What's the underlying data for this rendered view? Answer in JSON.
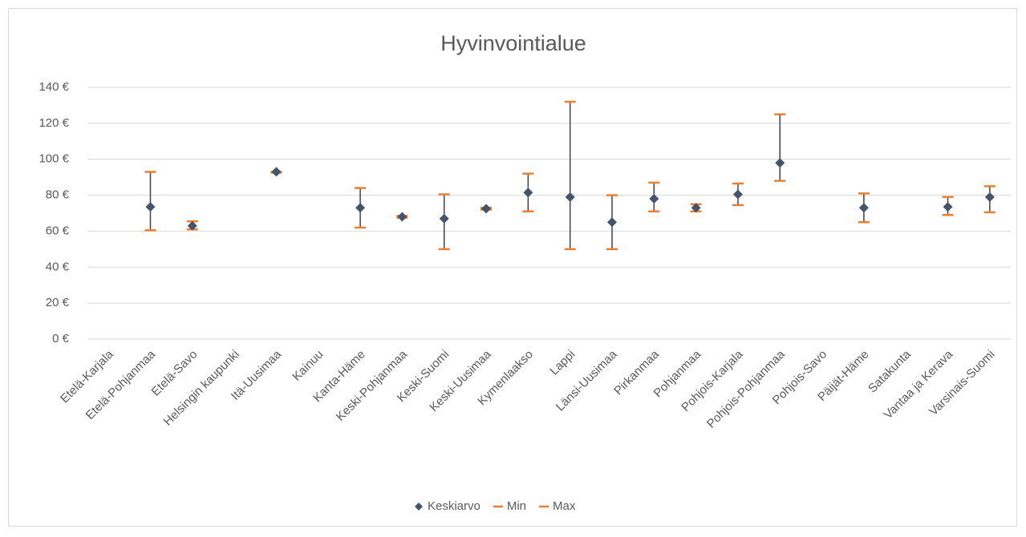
{
  "chart_data": {
    "type": "hilo",
    "title": "Hyvinvointialue",
    "categories": [
      "Etelä-Karjala",
      "Etelä-Pohjanmaa",
      "Etelä-Savo",
      "Helsingin kaupunki",
      "Itä-Uusimaa",
      "Kainuu",
      "Kanta-Häme",
      "Keski-Pohjanmaa",
      "Keski-Suomi",
      "Keski-Uusimaa",
      "Kymenlaakso",
      "Lappi",
      "Länsi-Uusimaa",
      "Pirkanmaa",
      "Pohjanmaa",
      "Pohjois-Karjala",
      "Pohjois-Pohjanmaa",
      "Pohjois-Savo",
      "Päijät-Häme",
      "Satakunta",
      "Vantaa ja Kerava",
      "Varsinais-Suomi"
    ],
    "series": [
      {
        "name": "Keskiarvo",
        "color": "#44546a",
        "values": [
          null,
          73.5,
          63,
          null,
          93,
          null,
          73,
          68,
          67,
          72.5,
          81.5,
          79,
          65,
          78,
          73,
          80.5,
          98,
          null,
          73,
          null,
          73.5,
          79
        ]
      },
      {
        "name": "Min",
        "color": "#ed7d31",
        "values": [
          null,
          60.5,
          61,
          null,
          92.5,
          null,
          62,
          67.5,
          50,
          72,
          71,
          50,
          50,
          71,
          71,
          74.5,
          88,
          null,
          65,
          null,
          69,
          70.5
        ]
      },
      {
        "name": "Max",
        "color": "#ed7d31",
        "values": [
          null,
          93,
          65.5,
          null,
          93,
          null,
          84,
          68.5,
          80.5,
          73,
          92,
          132,
          80,
          87,
          75,
          86.5,
          125,
          null,
          81,
          null,
          79,
          85
        ]
      }
    ],
    "range_color": "#404040",
    "ylim": [
      0,
      140
    ],
    "yticks": [
      {
        "value": 0,
        "label": "0 €"
      },
      {
        "value": 20,
        "label": "20 €"
      },
      {
        "value": 40,
        "label": "40 €"
      },
      {
        "value": 60,
        "label": "60 €"
      },
      {
        "value": 80,
        "label": "80 €"
      },
      {
        "value": 100,
        "label": "100 €"
      },
      {
        "value": 120,
        "label": "120 €"
      },
      {
        "value": 140,
        "label": "140 €"
      }
    ],
    "grid": true,
    "legend": "bottom"
  }
}
